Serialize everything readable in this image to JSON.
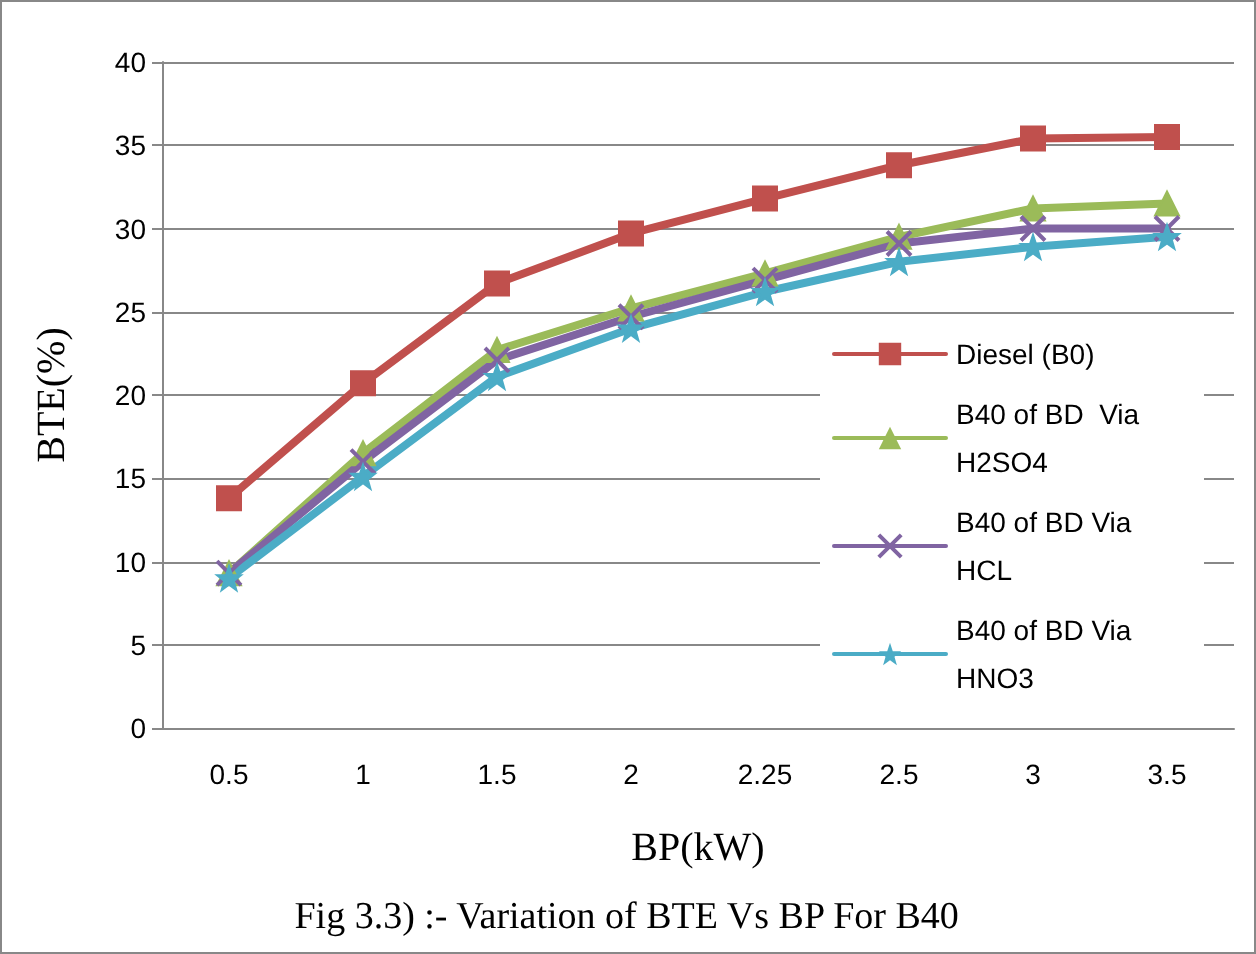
{
  "chart_data": {
    "type": "line",
    "xlabel": "BP(kW)",
    "ylabel": "BTE(%)",
    "annotations": [
      "Fig 3.3) :- Variation of BTE Vs BP For B40"
    ],
    "categories": [
      "0.5",
      "1",
      "1.5",
      "2",
      "2.25",
      "2.5",
      "3",
      "3.5"
    ],
    "series": [
      {
        "name": "Diesel (B0)",
        "color": "#c0504d",
        "marker": "square",
        "values": [
          13.8,
          20.7,
          26.7,
          29.7,
          31.8,
          33.8,
          35.4,
          35.5
        ]
      },
      {
        "name": "B40 of BD  Via H2SO4",
        "color": "#9bbb59",
        "marker": "triangle",
        "values": [
          9.3,
          16.5,
          22.7,
          25.2,
          27.3,
          29.5,
          31.2,
          31.5
        ]
      },
      {
        "name": "B40 of BD Via HCL",
        "color": "#8064a2",
        "marker": "cross",
        "values": [
          9.3,
          16.0,
          22.1,
          24.7,
          26.9,
          29.1,
          30.0,
          30.0
        ]
      },
      {
        "name": "B40 of BD Via HNO3",
        "color": "#4bacc6",
        "marker": "star",
        "values": [
          9.0,
          15.1,
          21.1,
          24.0,
          26.2,
          28.0,
          28.9,
          29.5
        ]
      }
    ],
    "ylim": [
      0,
      40
    ],
    "yticks": [
      0,
      5,
      10,
      15,
      20,
      25,
      30,
      35,
      40
    ],
    "grid": "y",
    "legend": "right",
    "line_style": "solid"
  }
}
